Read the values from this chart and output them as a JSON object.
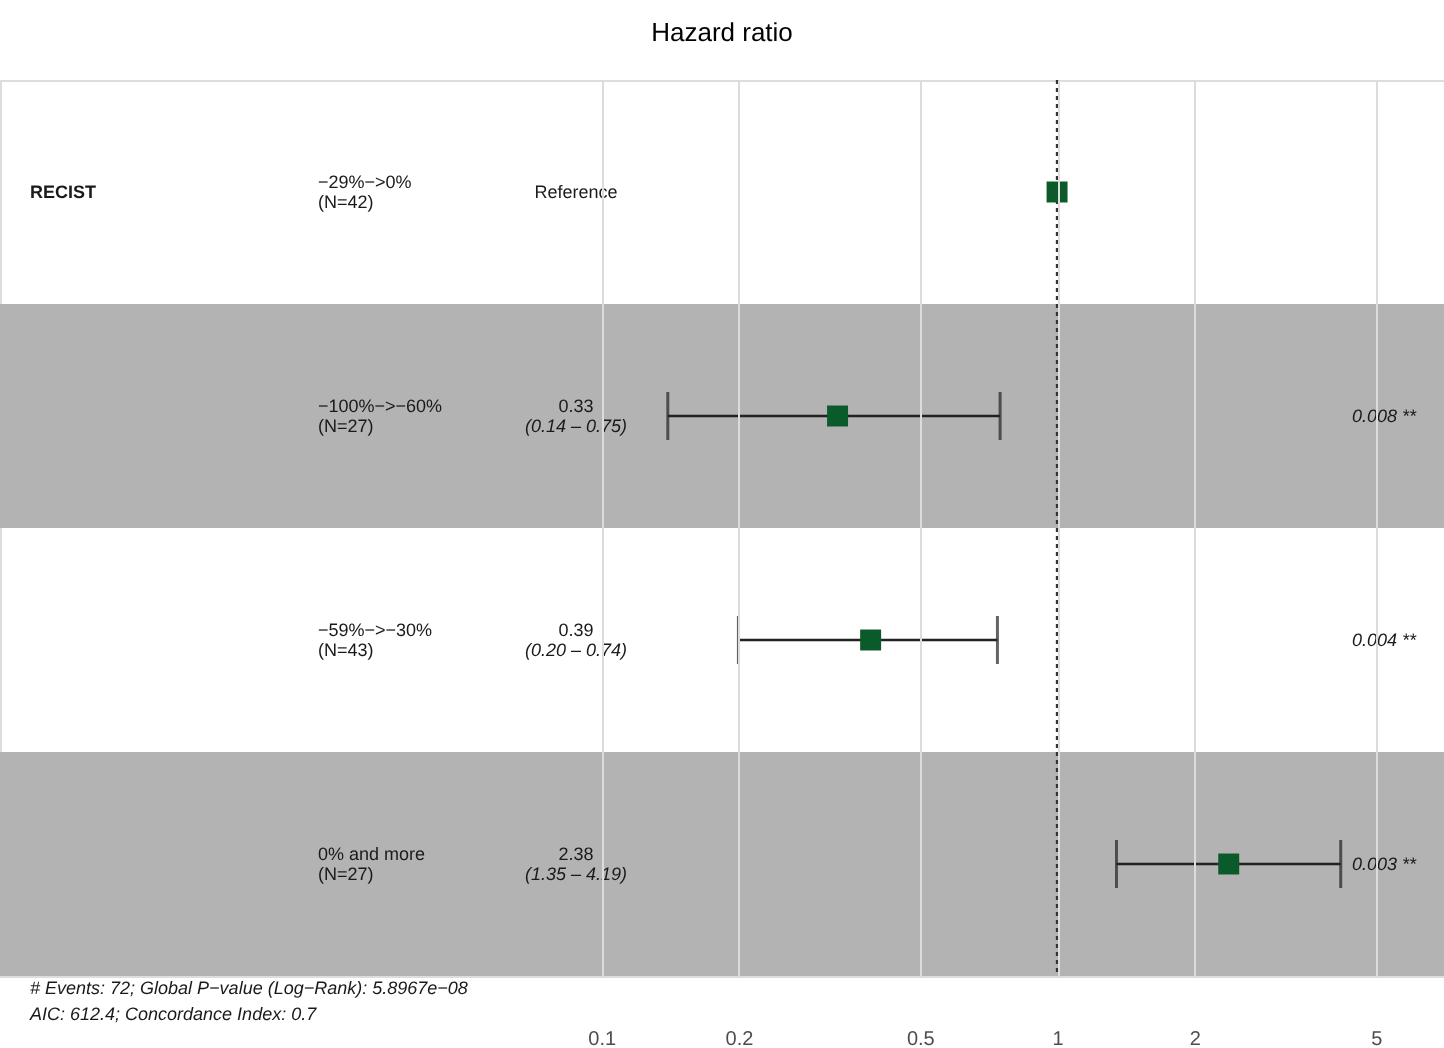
{
  "chart_data": {
    "type": "scatter",
    "orientation": "horizontal",
    "title": "Hazard ratio",
    "ylabel": "RECIST",
    "categories": [
      "−29%−>0%\n(N=42)",
      "−100%−>−60%\n(N=27)",
      "−59%−>−30%\n(N=43)",
      "0% and more\n(N=27)"
    ],
    "values": [
      1,
      0.33,
      0.39,
      2.38
    ],
    "errors": [
      null,
      [
        0.14,
        0.75
      ],
      [
        0.2,
        0.74
      ],
      [
        1.35,
        4.19
      ]
    ],
    "value_labels": [
      null,
      "0.33\n(0.14 – 0.75)",
      "0.39\n(0.20 – 0.74)",
      "2.38\n(1.35 – 4.19)"
    ],
    "color": "#0b5a2a",
    "marker": "square",
    "xlim": [
      0.0048,
      7.06
    ],
    "xticks": [
      0.1,
      0.2,
      0.5,
      1,
      2,
      5
    ],
    "log": "x",
    "grid": "x",
    "ref_lines": [
      {
        "axis": "x",
        "value": 1,
        "line_style": "dotted"
      }
    ],
    "bands": [
      {
        "axis": "y",
        "from": "−100%−>−60%\n(N=27)",
        "to": "−100%−>−60%\n(N=27)",
        "color": "#b3b3b3"
      },
      {
        "axis": "y",
        "from": "0% and more\n(N=27)",
        "to": "0% and more\n(N=27)",
        "color": "#b3b3b3"
      }
    ],
    "annotations": [
      "Reference",
      "0.008 **",
      "0.004 **",
      "0.003 **",
      "# Events: 72; Global P−value (Log−Rank): 5.8967e−08",
      "AIC: 612.4; Concordance Index: 0.7"
    ]
  }
}
